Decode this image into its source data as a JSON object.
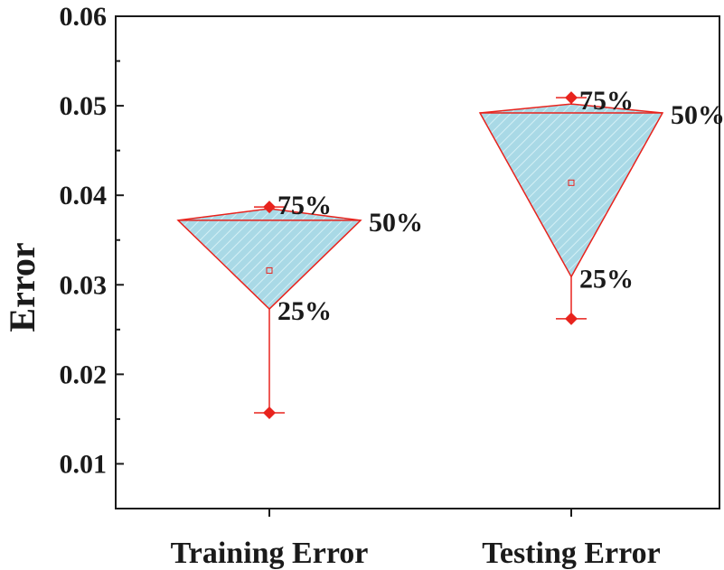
{
  "chart_data": {
    "type": "box",
    "ylabel": "Error",
    "ylim": [
      0.005,
      0.06
    ],
    "yticks": [
      "0.01",
      "0.02",
      "0.03",
      "0.04",
      "0.05",
      "0.06"
    ],
    "categories": [
      "Training Error",
      "Testing Error"
    ],
    "boxes": [
      {
        "category": "Training Error",
        "min": 0.0157,
        "q1": 0.0273,
        "median": 0.0372,
        "q3": 0.0385,
        "max": 0.0387,
        "mean": 0.0316
      },
      {
        "category": "Testing Error",
        "min": 0.0262,
        "q1": 0.0309,
        "median": 0.0492,
        "q3": 0.0502,
        "max": 0.0509,
        "mean": 0.0414
      }
    ],
    "labels": {
      "q3": "75%",
      "median": "50%",
      "q1": "25%"
    },
    "fill_color": "#a9d9e6",
    "hatch_color": "#c8ecf3",
    "line_color": "#e8231d",
    "marker_color": "#e8231d"
  }
}
